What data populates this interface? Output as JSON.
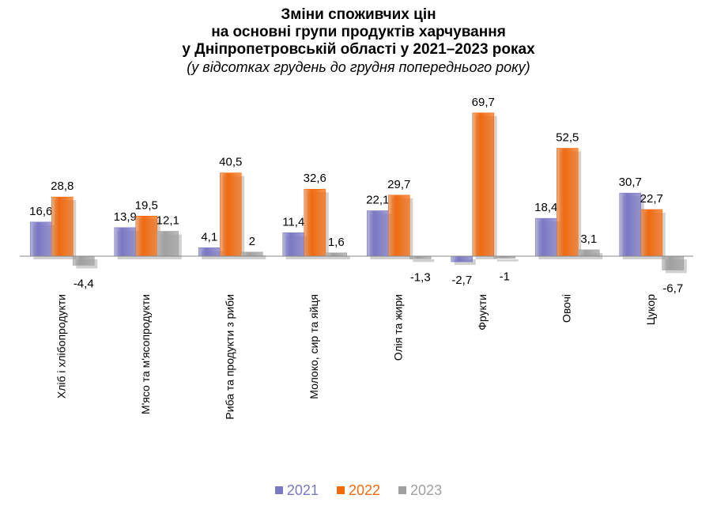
{
  "titles": {
    "line1": "Зміни споживчих цін",
    "line2": "на основні групи продуктів харчування",
    "line3": "у Дніпропетровській області у 2021–2023 роках",
    "subtitle": "(у відсотках грудень до грудня попереднього року)"
  },
  "colors": {
    "2021": "#7b78c4",
    "2022": "#f06a10",
    "2023": "#a0a0a0",
    "axis": "#888888"
  },
  "chart_data": {
    "type": "bar",
    "categories": [
      "Хліб і хлібопродукти",
      "М'ясо та м'ясопродукти",
      "Риба та продукти з риби",
      "Молоко, сир та яйця",
      "Олія та жири",
      "Фрукти",
      "Овочі",
      "Цукор"
    ],
    "series": [
      {
        "name": "2021",
        "values": [
          16.6,
          13.9,
          4.1,
          11.4,
          22.1,
          -2.7,
          18.4,
          30.7
        ],
        "labels": [
          "16,6",
          "13,9",
          "4,1",
          "11,4",
          "22,1",
          "-2,7",
          "18,4",
          "30,7"
        ]
      },
      {
        "name": "2022",
        "values": [
          28.8,
          19.5,
          40.5,
          32.6,
          29.7,
          69.7,
          52.5,
          22.7
        ],
        "labels": [
          "28,8",
          "19,5",
          "40,5",
          "32,6",
          "29,7",
          "69,7",
          "52,5",
          "22,7"
        ]
      },
      {
        "name": "2023",
        "values": [
          -4.4,
          12.1,
          2,
          1.6,
          -1.3,
          -1,
          3.1,
          -6.7
        ],
        "labels": [
          "-4,4",
          "12,1",
          "2",
          "1,6",
          "-1,3",
          "-1",
          "3,1",
          "-6,7"
        ]
      }
    ],
    "grid": false,
    "legend_position": "bottom",
    "ylim": [
      -10,
      75
    ]
  }
}
